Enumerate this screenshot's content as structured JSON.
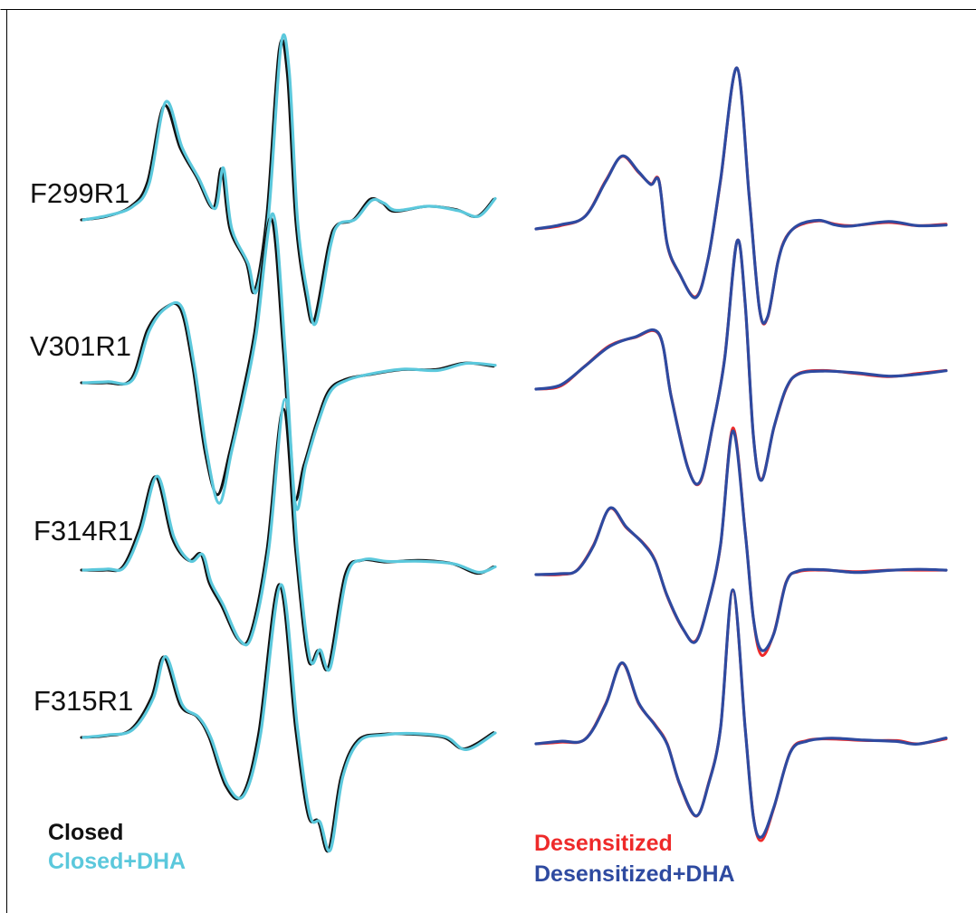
{
  "colors": {
    "closed": "#111111",
    "closed_dha": "#5bc8dc",
    "desensitized": "#ee2a2a",
    "desensitized_dha": "#2e4aa0"
  },
  "legend_left": {
    "closed": "Closed",
    "closed_dha": "Closed+DHA"
  },
  "legend_right": {
    "desensitized": "Desensitized",
    "desensitized_dha": "Desensitized+DHA"
  },
  "chart_data": {
    "type": "line",
    "title": "",
    "xlabel": "",
    "ylabel": "",
    "grid": false,
    "panels": [
      {
        "name": "left",
        "series_names": [
          "Closed",
          "Closed+DHA"
        ],
        "rows": [
          {
            "label": "F299R1",
            "points": [
              [
                0,
                0
              ],
              [
                0.06,
                0.02
              ],
              [
                0.12,
                0.08
              ],
              [
                0.16,
                0.22
              ],
              [
                0.2,
                0.67
              ],
              [
                0.24,
                0.42
              ],
              [
                0.28,
                0.25
              ],
              [
                0.32,
                0.07
              ],
              [
                0.34,
                0.3
              ],
              [
                0.36,
                -0.05
              ],
              [
                0.4,
                -0.25
              ],
              [
                0.42,
                -0.42
              ],
              [
                0.45,
                0.03
              ],
              [
                0.48,
                1.0
              ],
              [
                0.5,
                0.85
              ],
              [
                0.52,
                0.0
              ],
              [
                0.545,
                -0.45
              ],
              [
                0.565,
                -0.59
              ],
              [
                0.6,
                -0.15
              ],
              [
                0.62,
                -0.03
              ],
              [
                0.66,
                0.0
              ],
              [
                0.7,
                0.12
              ],
              [
                0.73,
                0.1
              ],
              [
                0.76,
                0.05
              ],
              [
                0.84,
                0.08
              ],
              [
                0.91,
                0.06
              ],
              [
                0.96,
                0.02
              ],
              [
                1.0,
                0.12
              ]
            ],
            "peaks": {
              "closed": 1.0,
              "closed_dha": 1.03,
              "closed_trough": -0.59,
              "closed_dha_trough": -0.6
            }
          },
          {
            "label": "V301R1",
            "points": [
              [
                0,
                0
              ],
              [
                0.06,
                0.0
              ],
              [
                0.12,
                0.02
              ],
              [
                0.16,
                0.32
              ],
              [
                0.2,
                0.45
              ],
              [
                0.24,
                0.45
              ],
              [
                0.27,
                0.1
              ],
              [
                0.3,
                -0.42
              ],
              [
                0.33,
                -0.68
              ],
              [
                0.36,
                -0.42
              ],
              [
                0.39,
                -0.08
              ],
              [
                0.42,
                0.3
              ],
              [
                0.46,
                1.0
              ],
              [
                0.49,
                0.2
              ],
              [
                0.515,
                -0.68
              ],
              [
                0.54,
                -0.5
              ],
              [
                0.57,
                -0.25
              ],
              [
                0.6,
                -0.05
              ],
              [
                0.64,
                0.02
              ],
              [
                0.7,
                0.05
              ],
              [
                0.78,
                0.08
              ],
              [
                0.86,
                0.08
              ],
              [
                0.93,
                0.12
              ],
              [
                1.0,
                0.1
              ]
            ],
            "peaks": {
              "closed": 1.0,
              "closed_dha": 1.02,
              "closed_trough": -0.72,
              "closed_dha_trough": -0.78
            }
          },
          {
            "label": "F314R1",
            "points": [
              [
                0,
                0
              ],
              [
                0.06,
                0.0
              ],
              [
                0.1,
                0.02
              ],
              [
                0.14,
                0.25
              ],
              [
                0.18,
                0.58
              ],
              [
                0.22,
                0.2
              ],
              [
                0.26,
                0.06
              ],
              [
                0.29,
                0.1
              ],
              [
                0.31,
                -0.08
              ],
              [
                0.34,
                -0.22
              ],
              [
                0.38,
                -0.43
              ],
              [
                0.41,
                -0.4
              ],
              [
                0.45,
                0.12
              ],
              [
                0.49,
                1.0
              ],
              [
                0.52,
                0.12
              ],
              [
                0.55,
                -0.55
              ],
              [
                0.575,
                -0.5
              ],
              [
                0.6,
                -0.6
              ],
              [
                0.64,
                -0.03
              ],
              [
                0.68,
                0.06
              ],
              [
                0.74,
                0.05
              ],
              [
                0.82,
                0.06
              ],
              [
                0.9,
                0.04
              ],
              [
                0.96,
                -0.02
              ],
              [
                1.0,
                0.02
              ]
            ],
            "peaks": {
              "closed": 1.0,
              "closed_dha": 1.06,
              "closed_trough": -0.62,
              "closed_dha_trough": -0.62
            }
          },
          {
            "label": "F315R1",
            "points": [
              [
                0,
                0
              ],
              [
                0.06,
                0.01
              ],
              [
                0.12,
                0.05
              ],
              [
                0.17,
                0.25
              ],
              [
                0.2,
                0.5
              ],
              [
                0.24,
                0.2
              ],
              [
                0.28,
                0.13
              ],
              [
                0.31,
                0.0
              ],
              [
                0.35,
                -0.3
              ],
              [
                0.39,
                -0.36
              ],
              [
                0.43,
                0.02
              ],
              [
                0.48,
                0.95
              ],
              [
                0.52,
                0.05
              ],
              [
                0.55,
                -0.48
              ],
              [
                0.575,
                -0.52
              ],
              [
                0.6,
                -0.7
              ],
              [
                0.63,
                -0.25
              ],
              [
                0.67,
                -0.02
              ],
              [
                0.73,
                0.02
              ],
              [
                0.8,
                0.02
              ],
              [
                0.88,
                0.0
              ],
              [
                0.93,
                -0.07
              ],
              [
                1.0,
                0.03
              ]
            ],
            "peaks": {
              "closed": 0.95,
              "closed_dha": 0.95,
              "closed_trough": -0.7,
              "closed_dha_trough": -0.7
            }
          }
        ]
      },
      {
        "name": "right",
        "series_names": [
          "Desensitized",
          "Desensitized+DHA"
        ],
        "rows": [
          {
            "label": "",
            "points": [
              [
                0,
                0
              ],
              [
                0.06,
                0.02
              ],
              [
                0.12,
                0.08
              ],
              [
                0.17,
                0.3
              ],
              [
                0.21,
                0.45
              ],
              [
                0.25,
                0.35
              ],
              [
                0.28,
                0.28
              ],
              [
                0.3,
                0.3
              ],
              [
                0.32,
                -0.1
              ],
              [
                0.35,
                -0.28
              ],
              [
                0.39,
                -0.42
              ],
              [
                0.42,
                -0.18
              ],
              [
                0.45,
                0.3
              ],
              [
                0.49,
                1.0
              ],
              [
                0.52,
                0.2
              ],
              [
                0.545,
                -0.5
              ],
              [
                0.565,
                -0.55
              ],
              [
                0.59,
                -0.2
              ],
              [
                0.61,
                -0.05
              ],
              [
                0.64,
                0.02
              ],
              [
                0.69,
                0.05
              ],
              [
                0.73,
                0.03
              ],
              [
                0.77,
                0.02
              ],
              [
                0.86,
                0.04
              ],
              [
                0.93,
                0.02
              ],
              [
                1.0,
                0.03
              ]
            ],
            "peaks": {
              "desensitized": 1.0,
              "desensitized_dha": 1.0,
              "desensitized_trough": -0.55,
              "desensitized_dha_trough": -0.55
            }
          },
          {
            "label": "",
            "points": [
              [
                0,
                0
              ],
              [
                0.06,
                0.02
              ],
              [
                0.12,
                0.15
              ],
              [
                0.18,
                0.28
              ],
              [
                0.24,
                0.33
              ],
              [
                0.3,
                0.35
              ],
              [
                0.33,
                -0.05
              ],
              [
                0.37,
                -0.5
              ],
              [
                0.4,
                -0.6
              ],
              [
                0.43,
                -0.25
              ],
              [
                0.46,
                0.2
              ],
              [
                0.49,
                0.95
              ],
              [
                0.51,
                0.55
              ],
              [
                0.53,
                -0.3
              ],
              [
                0.55,
                -0.58
              ],
              [
                0.58,
                -0.25
              ],
              [
                0.61,
                0.0
              ],
              [
                0.64,
                0.1
              ],
              [
                0.7,
                0.12
              ],
              [
                0.78,
                0.1
              ],
              [
                0.86,
                0.08
              ],
              [
                0.93,
                0.1
              ],
              [
                1.0,
                0.12
              ]
            ],
            "peaks": {
              "desensitized": 0.95,
              "desensitized_dha": 0.95,
              "desensitized_trough": -0.58,
              "desensitized_dha_trough": -0.58
            }
          },
          {
            "label": "",
            "points": [
              [
                0,
                0
              ],
              [
                0.06,
                0.0
              ],
              [
                0.1,
                0.03
              ],
              [
                0.14,
                0.2
              ],
              [
                0.18,
                0.45
              ],
              [
                0.22,
                0.32
              ],
              [
                0.26,
                0.22
              ],
              [
                0.29,
                0.1
              ],
              [
                0.32,
                -0.15
              ],
              [
                0.36,
                -0.38
              ],
              [
                0.39,
                -0.45
              ],
              [
                0.42,
                -0.2
              ],
              [
                0.45,
                0.2
              ],
              [
                0.48,
                1.0
              ],
              [
                0.51,
                0.3
              ],
              [
                0.53,
                -0.3
              ],
              [
                0.55,
                -0.55
              ],
              [
                0.58,
                -0.4
              ],
              [
                0.61,
                -0.05
              ],
              [
                0.64,
                0.02
              ],
              [
                0.7,
                0.03
              ],
              [
                0.78,
                0.02
              ],
              [
                0.86,
                0.03
              ],
              [
                0.93,
                0.03
              ],
              [
                1.0,
                0.03
              ]
            ],
            "peaks": {
              "desensitized": 1.0,
              "desensitized_dha": 0.98,
              "desensitized_trough": -0.58,
              "desensitized_dha_trough": -0.55
            }
          },
          {
            "label": "",
            "points": [
              [
                0,
                0
              ],
              [
                0.06,
                0.01
              ],
              [
                0.12,
                0.03
              ],
              [
                0.17,
                0.25
              ],
              [
                0.21,
                0.5
              ],
              [
                0.25,
                0.25
              ],
              [
                0.29,
                0.12
              ],
              [
                0.32,
                0.0
              ],
              [
                0.35,
                -0.25
              ],
              [
                0.39,
                -0.45
              ],
              [
                0.42,
                -0.25
              ],
              [
                0.45,
                0.1
              ],
              [
                0.48,
                0.95
              ],
              [
                0.51,
                0.1
              ],
              [
                0.53,
                -0.45
              ],
              [
                0.55,
                -0.6
              ],
              [
                0.58,
                -0.4
              ],
              [
                0.62,
                -0.05
              ],
              [
                0.66,
                0.02
              ],
              [
                0.72,
                0.03
              ],
              [
                0.8,
                0.02
              ],
              [
                0.88,
                0.02
              ],
              [
                0.93,
                0.0
              ],
              [
                1.0,
                0.03
              ]
            ],
            "peaks": {
              "desensitized": 0.95,
              "desensitized_dha": 0.95,
              "desensitized_trough": -0.62,
              "desensitized_dha_trough": -0.6
            }
          }
        ]
      }
    ]
  }
}
